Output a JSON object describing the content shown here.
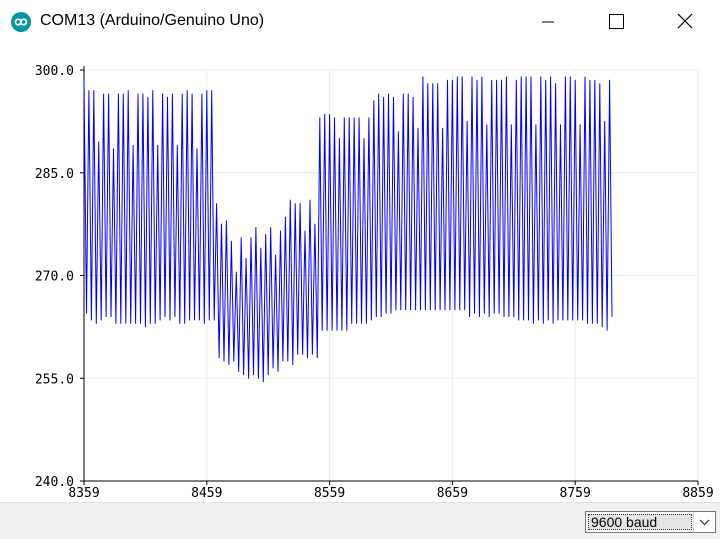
{
  "window": {
    "title": "COM13 (Arduino/Genuino Uno)",
    "app_icon": "arduino-infinity-icon",
    "controls": [
      "minimize-icon",
      "maximize-icon",
      "close-icon"
    ]
  },
  "statusbar": {
    "baud_selected": "9600 baud"
  },
  "chart_data": {
    "type": "line",
    "title": "",
    "xlabel": "",
    "ylabel": "",
    "xlim": [
      8359,
      8859
    ],
    "ylim": [
      240.0,
      300.0
    ],
    "x_ticks": [
      "8359",
      "8459",
      "8559",
      "8659",
      "8759",
      "8859"
    ],
    "y_ticks": [
      "240.0",
      "255.0",
      "270.0",
      "285.0",
      "300.0"
    ],
    "grid": true,
    "line_color": "#0000ff",
    "series": [
      {
        "x_start": 8359,
        "x_step": 2,
        "values": [
          298.5,
          264.5,
          297.0,
          263.5,
          297.0,
          263.0,
          289.5,
          263.5,
          296.5,
          264.0,
          296.5,
          264.0,
          288.5,
          263.0,
          296.5,
          263.0,
          296.5,
          263.0,
          297.0,
          263.0,
          289.0,
          263.0,
          296.5,
          263.0,
          296.5,
          262.5,
          296.0,
          263.0,
          297.0,
          263.0,
          289.0,
          263.5,
          296.5,
          264.0,
          296.0,
          263.5,
          296.5,
          264.0,
          289.0,
          263.0,
          296.5,
          263.0,
          297.0,
          263.5,
          296.5,
          263.5,
          288.5,
          263.5,
          296.5,
          263.0,
          297.0,
          263.5,
          297.0,
          263.5,
          280.5,
          258.0,
          277.5,
          257.5,
          278.0,
          257.0,
          275.0,
          257.5,
          270.5,
          256.0,
          275.5,
          255.5,
          272.5,
          255.0,
          275.5,
          255.5,
          277.0,
          255.0,
          274.0,
          254.5,
          276.0,
          255.5,
          277.0,
          256.5,
          273.0,
          256.0,
          276.5,
          257.5,
          278.5,
          257.5,
          281.0,
          257.0,
          280.5,
          258.5,
          280.5,
          258.5,
          276.5,
          258.0,
          281.0,
          258.5,
          277.5,
          258.0,
          293.0,
          262.0,
          293.5,
          262.0,
          293.5,
          262.0,
          293.0,
          262.0,
          290.0,
          262.0,
          293.0,
          262.0,
          293.0,
          263.0,
          293.0,
          263.0,
          293.0,
          263.0,
          290.0,
          263.0,
          293.0,
          263.5,
          295.5,
          264.0,
          296.5,
          264.0,
          296.0,
          264.5,
          296.5,
          264.5,
          296.0,
          265.0,
          291.0,
          265.0,
          296.5,
          265.0,
          296.5,
          265.0,
          296.0,
          265.0,
          291.5,
          265.0,
          299.0,
          265.0,
          298.0,
          265.0,
          298.0,
          265.0,
          298.0,
          265.0,
          291.5,
          265.0,
          298.5,
          265.0,
          298.5,
          265.0,
          299.0,
          265.0,
          299.0,
          265.0,
          292.5,
          264.0,
          299.0,
          264.5,
          298.5,
          264.0,
          299.0,
          264.5,
          292.0,
          264.0,
          298.5,
          264.5,
          298.5,
          264.5,
          298.5,
          264.0,
          299.0,
          264.0,
          292.0,
          264.0,
          298.5,
          263.5,
          299.0,
          263.5,
          299.0,
          263.5,
          299.0,
          263.0,
          292.0,
          263.5,
          299.0,
          263.0,
          298.5,
          263.5,
          299.0,
          263.0,
          298.0,
          263.5,
          292.0,
          263.5,
          299.0,
          263.5,
          299.0,
          263.5,
          298.5,
          263.5,
          292.0,
          263.5,
          299.0,
          263.0,
          298.5,
          263.0,
          298.5,
          263.0,
          298.0,
          262.5,
          292.5,
          262.0,
          298.5,
          264.0
        ]
      }
    ]
  }
}
